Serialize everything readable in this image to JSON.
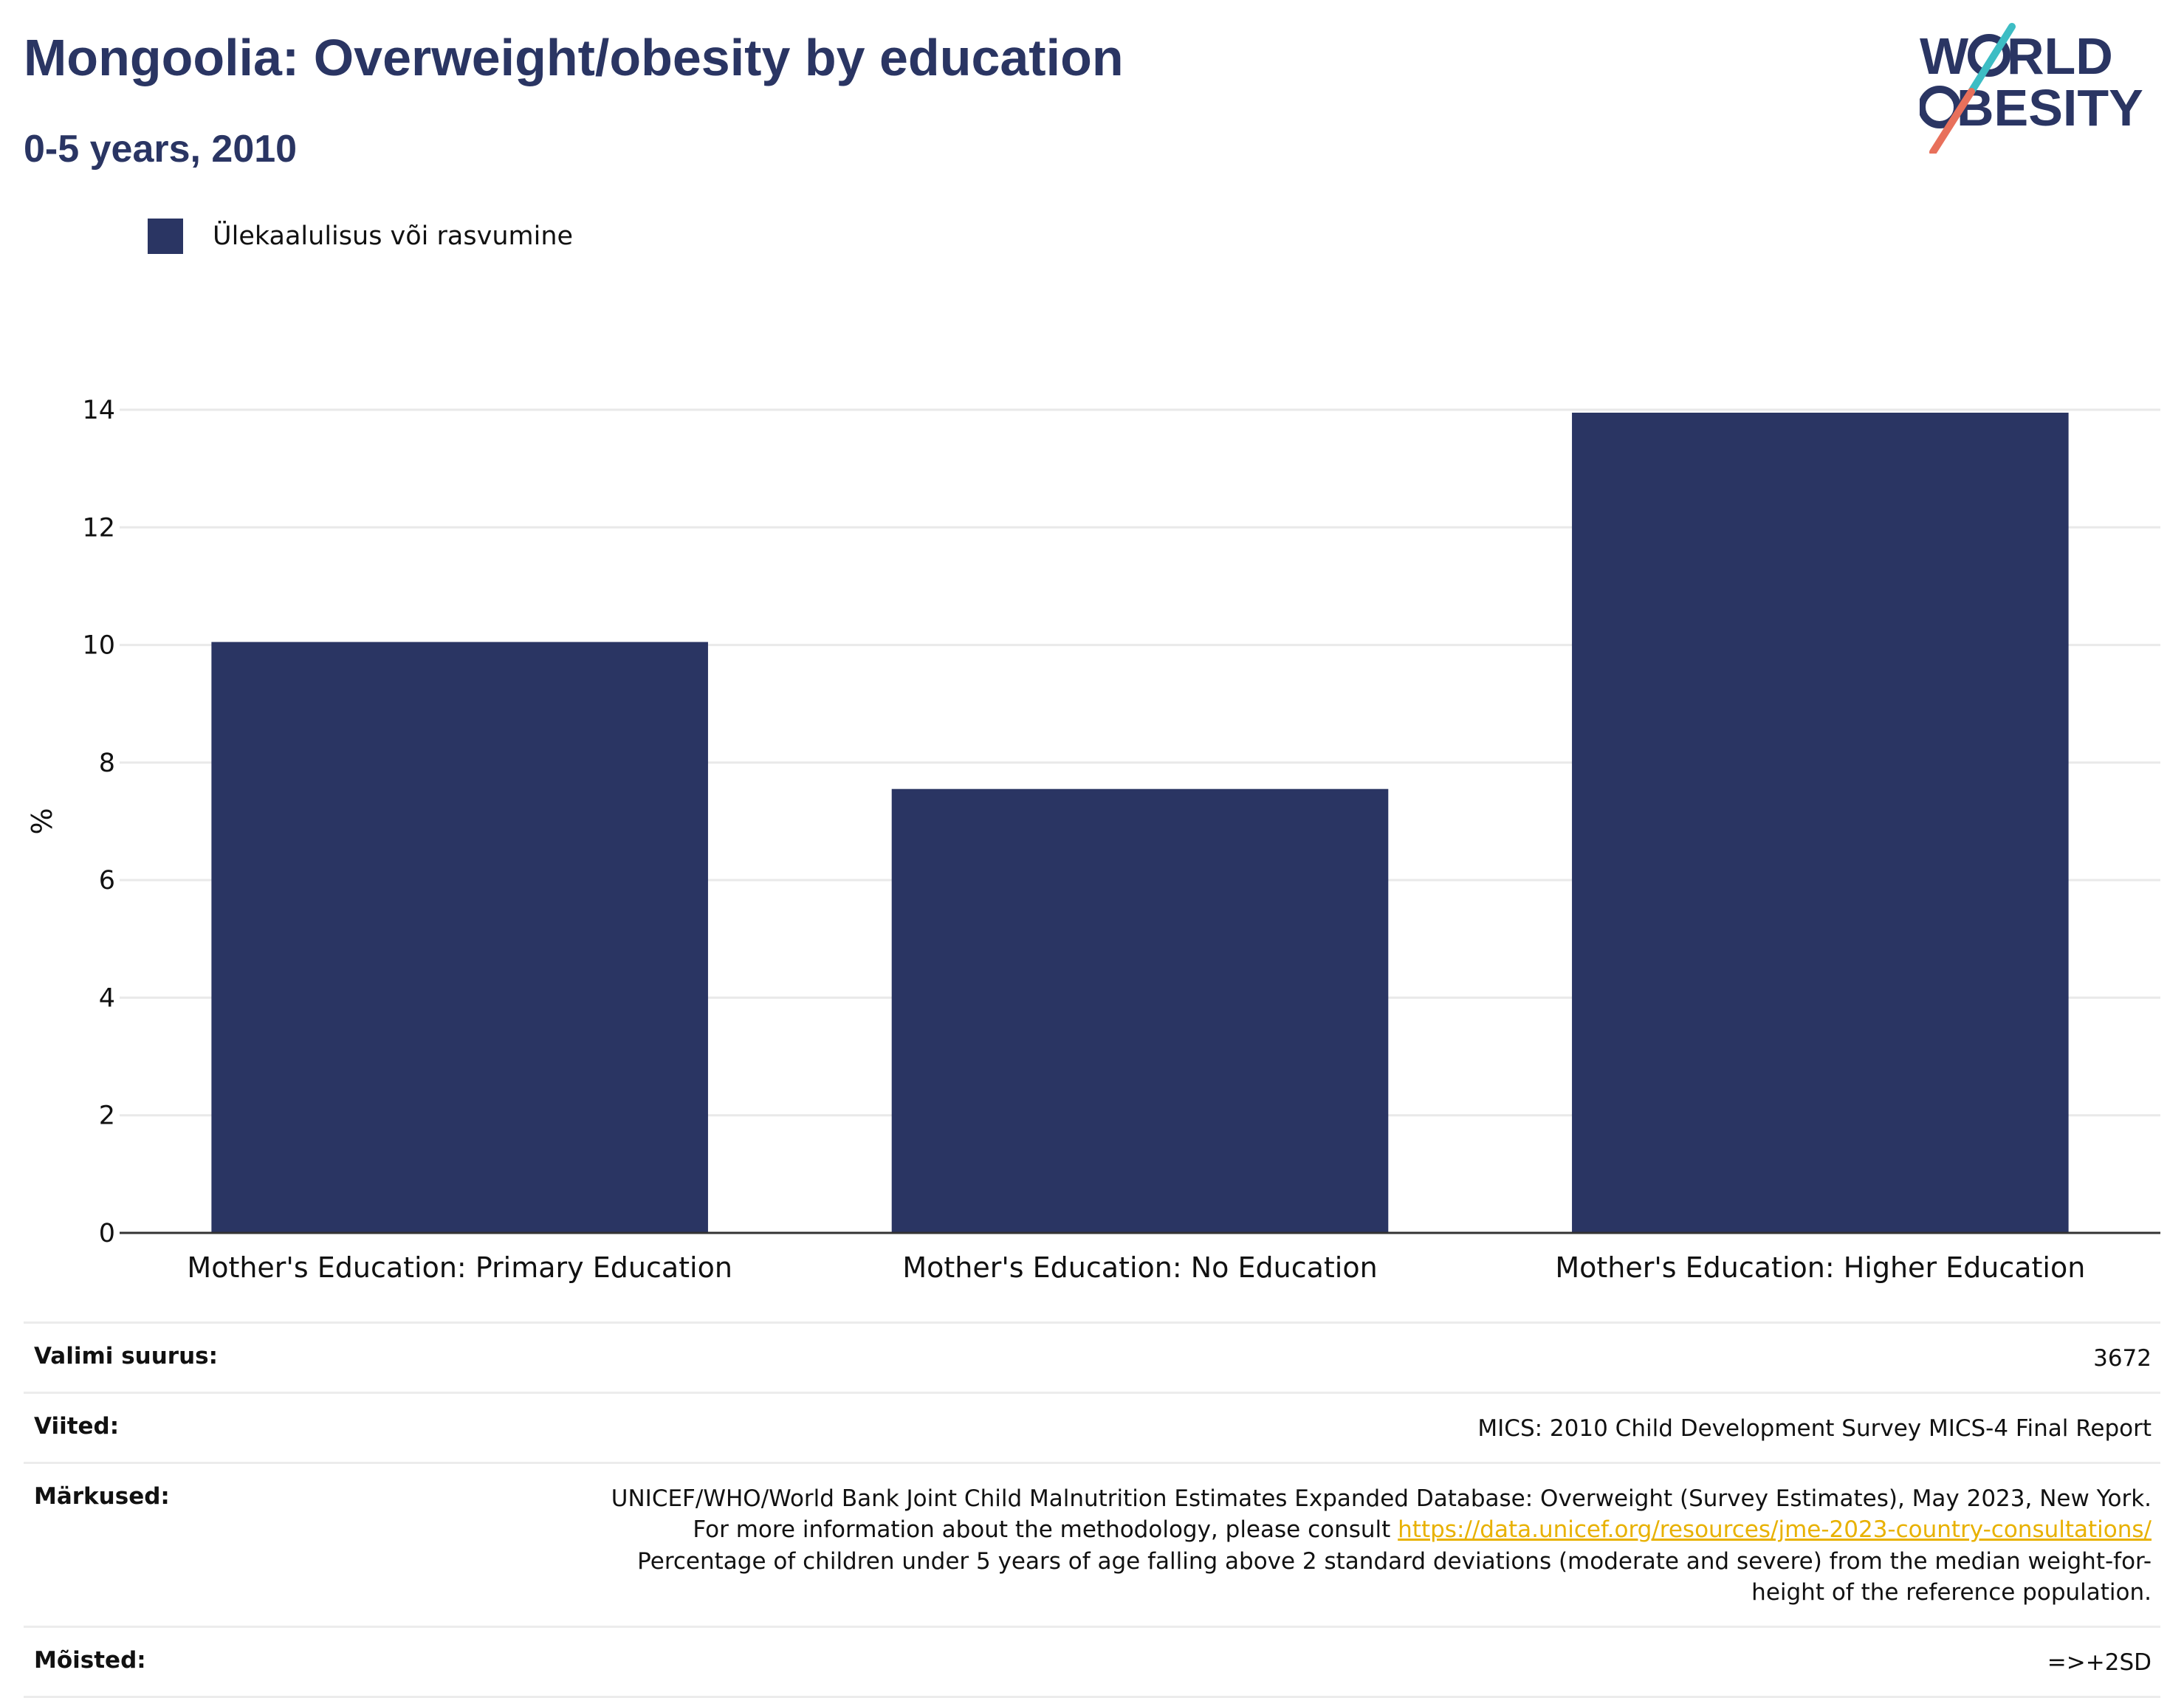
{
  "header": {
    "title": "Mongoolia: Overweight/obesity by education",
    "subtitle": "0-5 years, 2010"
  },
  "logo": {
    "line1": "WORLD",
    "line2": "OBESITY",
    "colors": {
      "navy": "#2a3563",
      "teal": "#3dbdc4",
      "coral": "#e8705b"
    }
  },
  "legend": {
    "label": "Ülekaalulisus või rasvumine",
    "color": "#2a3563"
  },
  "chart_data": {
    "type": "bar",
    "categories": [
      "Mother's Education: Primary Education",
      "Mother's Education: No Education",
      "Mother's Education: Higher Education"
    ],
    "series": [
      {
        "name": "Ülekaalulisus või rasvumine",
        "values": [
          10.05,
          7.55,
          13.95
        ],
        "color": "#2a3563"
      }
    ],
    "xlabel": "",
    "ylabel": "%",
    "ylim": [
      0,
      14
    ],
    "yticks": [
      0,
      2,
      4,
      6,
      8,
      10,
      12,
      14
    ],
    "grid": true
  },
  "info": {
    "sample_label": "Valimi suurus:",
    "sample_value": "3672",
    "refs_label": "Viited:",
    "refs_value": "MICS: 2010 Child Development Survey MICS-4 Final Report",
    "notes_label": "Märkused:",
    "notes_text_1": "UNICEF/WHO/World Bank Joint Child Malnutrition Estimates Expanded Database: Overweight (Survey Estimates), May 2023, New York. For more information about the methodology, please consult ",
    "notes_link": "https://data.unicef.org/resources/jme-2023-country-consultations/",
    "notes_text_2": "Percentage of children under 5 years of age falling above 2 standard deviations (moderate and severe) from the median weight-for-height of the reference population.",
    "defs_label": "Mõisted:",
    "defs_value": "=>+2SD"
  }
}
